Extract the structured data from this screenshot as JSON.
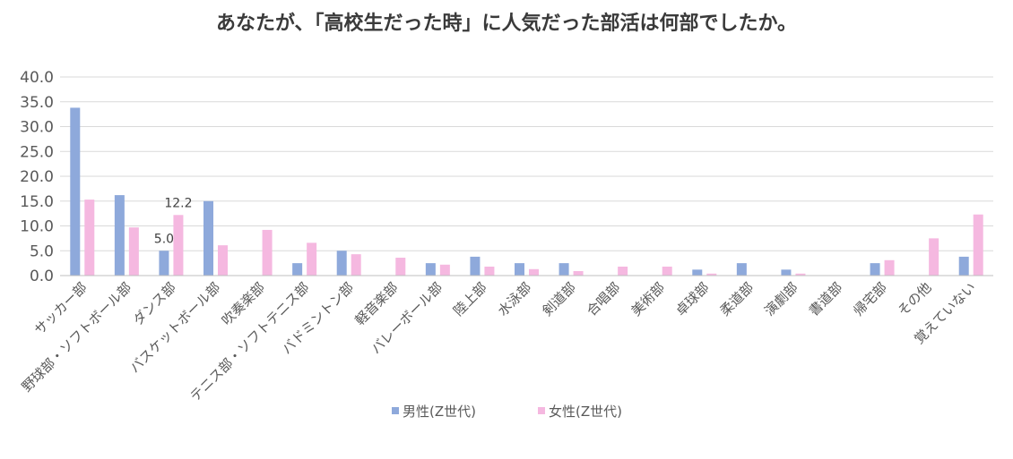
{
  "chart_data": {
    "type": "bar",
    "title": "あなたが、「高校生だった時」に人気だった部活は何部でしたか。",
    "categories": [
      "サッカー部",
      "野球部・ソフトボール部",
      "ダンス部",
      "バスケットボール部",
      "吹奏楽部",
      "テニス部・ソフトテニス部",
      "バドミントン部",
      "軽音楽部",
      "バレーボール部",
      "陸上部",
      "水泳部",
      "剣道部",
      "合唱部",
      "美術部",
      "卓球部",
      "柔道部",
      "演劇部",
      "書道部",
      "帰宅部",
      "その他",
      "覚えていない"
    ],
    "series": [
      {
        "name": "男性(Z世代)",
        "color": "#8EA9DB",
        "values": [
          33.8,
          16.2,
          5.0,
          15.0,
          0,
          2.5,
          5.0,
          0,
          2.5,
          3.8,
          2.5,
          2.5,
          0,
          0,
          1.2,
          2.5,
          1.2,
          0,
          2.5,
          0,
          3.8
        ]
      },
      {
        "name": "女性(Z世代)",
        "color": "#F5B8E0",
        "values": [
          15.3,
          9.7,
          12.2,
          6.1,
          9.2,
          6.6,
          4.3,
          3.6,
          2.2,
          1.8,
          1.3,
          0.9,
          1.8,
          1.8,
          0.4,
          0,
          0.4,
          0,
          3.1,
          7.5,
          12.3
        ]
      }
    ],
    "data_labels": [
      {
        "series": 0,
        "category": 2,
        "text": "5.0"
      },
      {
        "series": 1,
        "category": 2,
        "text": "12.2"
      }
    ],
    "yticks": [
      "0.0",
      "5.0",
      "10.0",
      "15.0",
      "20.0",
      "25.0",
      "30.0",
      "35.0",
      "40.0"
    ],
    "ylim": [
      0,
      40
    ],
    "grid": true,
    "legend_position": "bottom"
  }
}
